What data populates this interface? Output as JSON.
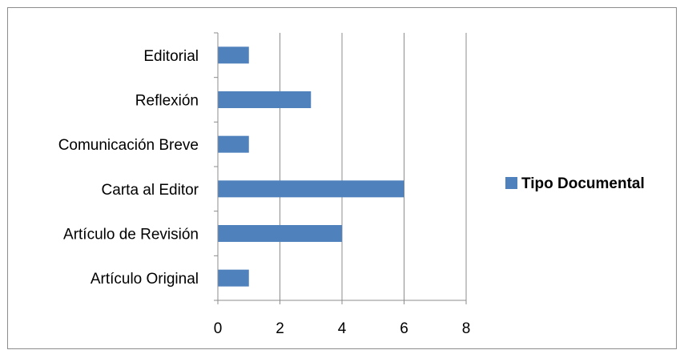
{
  "chart_data": {
    "type": "bar",
    "orientation": "horizontal",
    "categories": [
      "Artículo Original",
      "Artículo de Revisión",
      "Carta al Editor",
      "Comunicación Breve",
      "Reflexión",
      "Editorial"
    ],
    "series": [
      {
        "name": "Tipo Documental",
        "values": [
          1,
          4,
          6,
          1,
          3,
          1
        ],
        "color": "#4f81bd"
      }
    ],
    "xlim": [
      0,
      8
    ],
    "xticks": [
      "0",
      "2",
      "4",
      "6",
      "8"
    ],
    "grid": true,
    "legend_position": "right"
  }
}
